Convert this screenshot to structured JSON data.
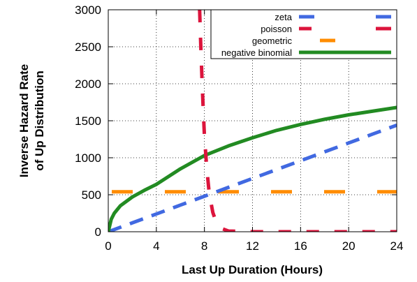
{
  "chart_data": {
    "type": "line",
    "xlabel": "Last Up Duration (Hours)",
    "ylabel": [
      "Inverse Hazard Rate",
      "of Up Distribution"
    ],
    "xlim": [
      0,
      24
    ],
    "ylim": [
      0,
      3000
    ],
    "xticks": [
      "0",
      "4",
      "8",
      "12",
      "16",
      "20",
      "24"
    ],
    "yticks": [
      "0",
      "500",
      "1000",
      "1500",
      "2000",
      "2500",
      "3000"
    ],
    "grid": true,
    "legend_position": "top-right",
    "series": [
      {
        "name": "zeta",
        "color": "#4169e1",
        "style": "dashed",
        "x": [
          0,
          2,
          4,
          6,
          8,
          10,
          12,
          14,
          16,
          18,
          20,
          22,
          24
        ],
        "y": [
          0,
          120,
          240,
          360,
          480,
          600,
          720,
          840,
          960,
          1080,
          1200,
          1320,
          1440
        ]
      },
      {
        "name": "poisson",
        "color": "#dc143c",
        "style": "dashed",
        "x": [
          7.6,
          7.7,
          7.8,
          7.9,
          8.0,
          8.2,
          8.4,
          8.7,
          9.0,
          9.5,
          10,
          12,
          16,
          20,
          24
        ],
        "y": [
          3000,
          2500,
          2050,
          1650,
          1300,
          850,
          520,
          260,
          120,
          40,
          10,
          0,
          0,
          0,
          0
        ]
      },
      {
        "name": "geometric",
        "color": "#ff8c00",
        "style": "dashed",
        "x": [
          0,
          24
        ],
        "y": [
          540,
          540
        ]
      },
      {
        "name": "negative binomial",
        "color": "#228b22",
        "style": "solid",
        "x": [
          0,
          0.25,
          0.5,
          1,
          2,
          3,
          4,
          6,
          8,
          10,
          12,
          14,
          16,
          18,
          20,
          22,
          24
        ],
        "y": [
          0,
          170,
          250,
          350,
          470,
          560,
          640,
          850,
          1030,
          1160,
          1270,
          1370,
          1450,
          1520,
          1580,
          1630,
          1680
        ]
      }
    ]
  }
}
